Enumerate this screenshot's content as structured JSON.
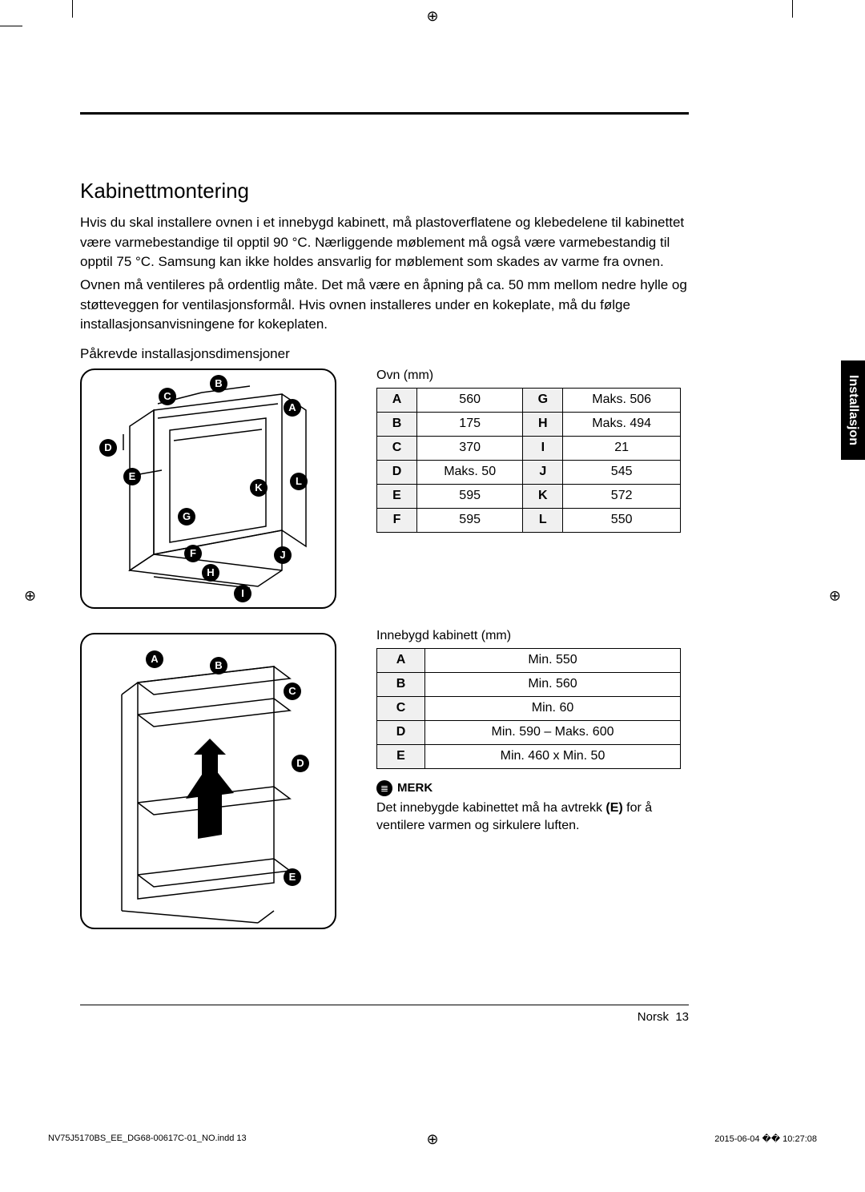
{
  "heading": "Kabinettmontering",
  "para1": "Hvis du skal installere ovnen i et innebygd kabinett, må plastoverflatene og klebedelene til kabinettet være varmebestandige til opptil 90 °C. Nærliggende møblement må også være varmebestandig til opptil 75 °C. Samsung kan ikke holdes ansvarlig for møblement som skades av varme fra ovnen.",
  "para2": "Ovnen må ventileres på ordentlig måte. Det må være en åpning på ca. 50 mm mellom nedre hylle og støtteveggen for ventilasjonsformål. Hvis ovnen installeres under en kokeplate, må du følge installasjonsanvisningene for kokeplaten.",
  "subheading": "Påkrevde installasjonsdimensjoner",
  "ovn_caption": "Ovn (mm)",
  "ovn_table": [
    {
      "k1": "A",
      "v1": "560",
      "k2": "G",
      "v2": "Maks. 506"
    },
    {
      "k1": "B",
      "v1": "175",
      "k2": "H",
      "v2": "Maks. 494"
    },
    {
      "k1": "C",
      "v1": "370",
      "k2": "I",
      "v2": "21"
    },
    {
      "k1": "D",
      "v1": "Maks. 50",
      "k2": "J",
      "v2": "545"
    },
    {
      "k1": "E",
      "v1": "595",
      "k2": "K",
      "v2": "572"
    },
    {
      "k1": "F",
      "v1": "595",
      "k2": "L",
      "v2": "550"
    }
  ],
  "kab_caption": "Innebygd kabinett (mm)",
  "kab_table": [
    {
      "k": "A",
      "v": "Min. 550"
    },
    {
      "k": "B",
      "v": "Min. 560"
    },
    {
      "k": "C",
      "v": "Min. 60"
    },
    {
      "k": "D",
      "v": "Min. 590 – Maks. 600"
    },
    {
      "k": "E",
      "v": "Min. 460 x Min. 50"
    }
  ],
  "note_label": "MERK",
  "note_text_1": "Det innebygde kabinettet må ha avtrekk ",
  "note_text_bold": "(E)",
  "note_text_2": " for å ventilere varmen og sirkulere luften.",
  "side_tab": "Installasjon",
  "footer_lang": "Norsk",
  "footer_page": "13",
  "print_left": "NV75J5170BS_EE_DG68-00617C-01_NO.indd   13",
  "print_right": "2015-06-04   �� 10:27:08",
  "diagram1_labels": [
    "A",
    "B",
    "C",
    "D",
    "E",
    "F",
    "G",
    "H",
    "I",
    "J",
    "K",
    "L"
  ],
  "diagram2_labels": [
    "A",
    "B",
    "C",
    "D",
    "E"
  ],
  "colors": {
    "bg": "#ffffff",
    "text": "#000000",
    "key_bg": "#f0f0f0"
  }
}
